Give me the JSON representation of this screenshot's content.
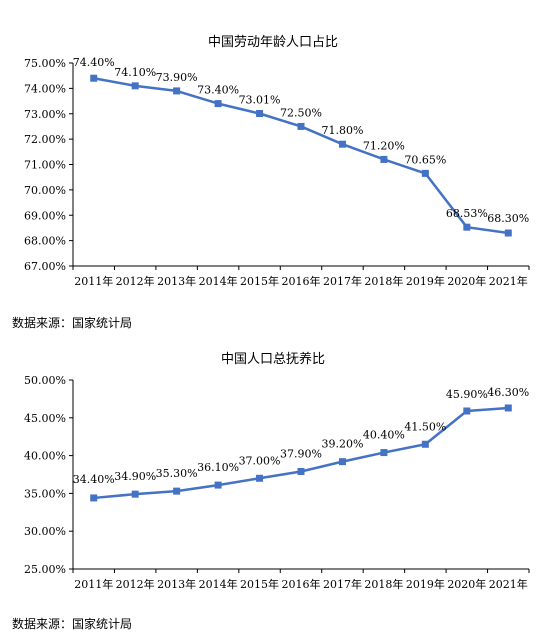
{
  "chart_data": [
    {
      "type": "line",
      "title": "中国劳动年龄人口占比",
      "categories": [
        "2011年",
        "2012年",
        "2013年",
        "2014年",
        "2015年",
        "2016年",
        "2017年",
        "2018年",
        "2019年",
        "2020年",
        "2021年"
      ],
      "values": [
        74.4,
        74.1,
        73.9,
        73.4,
        73.01,
        72.5,
        71.8,
        71.2,
        70.65,
        68.53,
        68.3
      ],
      "data_labels": [
        "74.40%",
        "74.10%",
        "73.90%",
        "73.40%",
        "73.01%",
        "72.50%",
        "71.80%",
        "71.20%",
        "70.65%",
        "68.53%",
        "68.30%"
      ],
      "y_ticks": [
        "67.00%",
        "68.00%",
        "69.00%",
        "70.00%",
        "71.00%",
        "72.00%",
        "73.00%",
        "74.00%",
        "75.00%"
      ],
      "ylim": [
        67,
        75
      ],
      "grid": false,
      "color": "#4472c4",
      "source": "数据来源：国家统计局"
    },
    {
      "type": "line",
      "title": "中国人口总抚养比",
      "categories": [
        "2011年",
        "2012年",
        "2013年",
        "2014年",
        "2015年",
        "2016年",
        "2017年",
        "2018年",
        "2019年",
        "2020年",
        "2021年"
      ],
      "values": [
        34.4,
        34.9,
        35.3,
        36.1,
        37.0,
        37.9,
        39.2,
        40.4,
        41.5,
        45.9,
        46.3
      ],
      "data_labels": [
        "34.40%",
        "34.90%",
        "35.30%",
        "36.10%",
        "37.00%",
        "37.90%",
        "39.20%",
        "40.40%",
        "41.50%",
        "45.90%",
        "46.30%"
      ],
      "y_ticks": [
        "25.00%",
        "30.00%",
        "35.00%",
        "40.00%",
        "45.00%",
        "50.00%"
      ],
      "ylim": [
        25,
        50
      ],
      "grid": false,
      "color": "#4472c4",
      "source": "数据来源：国家统计局"
    }
  ]
}
